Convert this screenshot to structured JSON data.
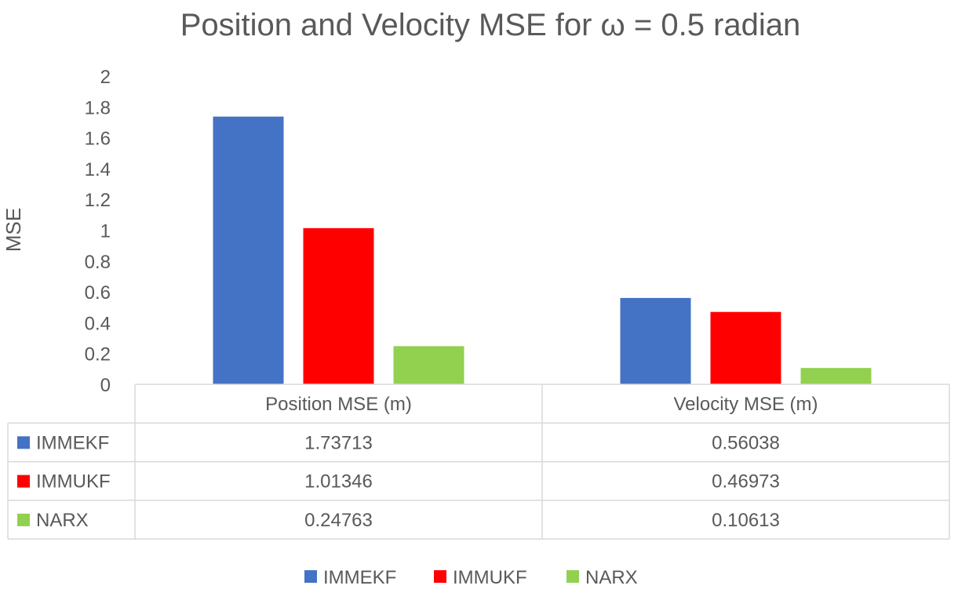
{
  "chart_data": {
    "type": "bar",
    "title": "Position and Velocity MSE for ω = 0.5 radian",
    "ylabel": "MSE",
    "xlabel": "",
    "ylim": [
      0,
      2
    ],
    "yticks": [
      "0",
      "0.2",
      "0.4",
      "0.6",
      "0.8",
      "1",
      "1.2",
      "1.4",
      "1.6",
      "1.8",
      "2"
    ],
    "grid": false,
    "legend_position": "bottom",
    "categories": [
      "Position MSE (m)",
      "Velocity MSE (m)"
    ],
    "series": [
      {
        "name": "IMMEKF",
        "color": "#4472c4",
        "values": [
          1.73713,
          0.56038
        ],
        "labels": [
          "1.73713",
          "0.56038"
        ]
      },
      {
        "name": "IMMUKF",
        "color": "#ff0000",
        "values": [
          1.01346,
          0.46973
        ],
        "labels": [
          "1.01346",
          "0.46973"
        ]
      },
      {
        "name": "NARX",
        "color": "#92d050",
        "values": [
          0.24763,
          0.10613
        ],
        "labels": [
          "0.24763",
          "0.10613"
        ]
      }
    ]
  }
}
